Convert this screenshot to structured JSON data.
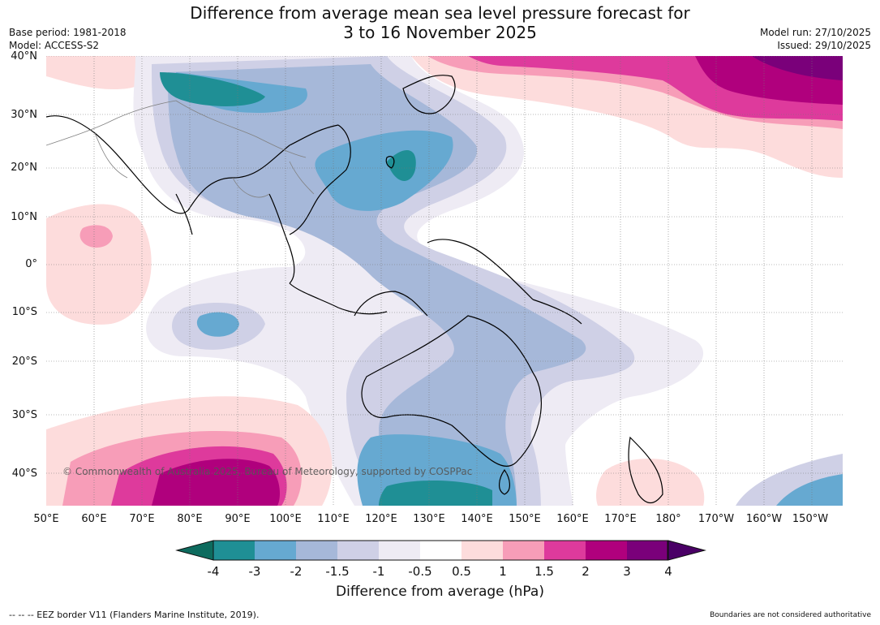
{
  "title_line1": "Difference from average mean sea level pressure forecast for",
  "title_line2": "3 to 16 November 2025",
  "base_period": "Base period: 1981-2018",
  "model": "Model: ACCESS-S2",
  "model_run": "Model run: 27/10/2025",
  "issued": "Issued: 29/10/2025",
  "copyright": "© Commonwealth of Australia 2025, Bureau of Meteorology, supported by COSPPac",
  "lat_labels": [
    "40°N",
    "30°N",
    "20°N",
    "10°N",
    "0°",
    "10°S",
    "20°S",
    "30°S",
    "40°S"
  ],
  "lon_labels": [
    "50°E",
    "60°E",
    "70°E",
    "80°E",
    "90°E",
    "100°E",
    "110°E",
    "120°E",
    "130°E",
    "140°E",
    "150°E",
    "160°E",
    "170°E",
    "180°",
    "170°W",
    "160°W",
    "150°W"
  ],
  "colorbar": {
    "ticks": [
      "-4",
      "-3",
      "-2",
      "-1.5",
      "-1",
      "-0.5",
      "0.5",
      "1",
      "1.5",
      "2",
      "3",
      "4"
    ],
    "colors": [
      "#0d6b5e",
      "#1f8f95",
      "#66a9d1",
      "#a6b8d9",
      "#cfd0e6",
      "#eeebf4",
      "#ffffff",
      "#fddcdc",
      "#f79db8",
      "#de3a9c",
      "#b0007d",
      "#7a007a",
      "#4a0066"
    ],
    "title": "Difference from average (hPa)"
  },
  "footer_left": "--  --  -- EEZ border V11 (Flanders Marine Institute, 2019).",
  "footer_right": "Boundaries are not considered authoritative"
}
